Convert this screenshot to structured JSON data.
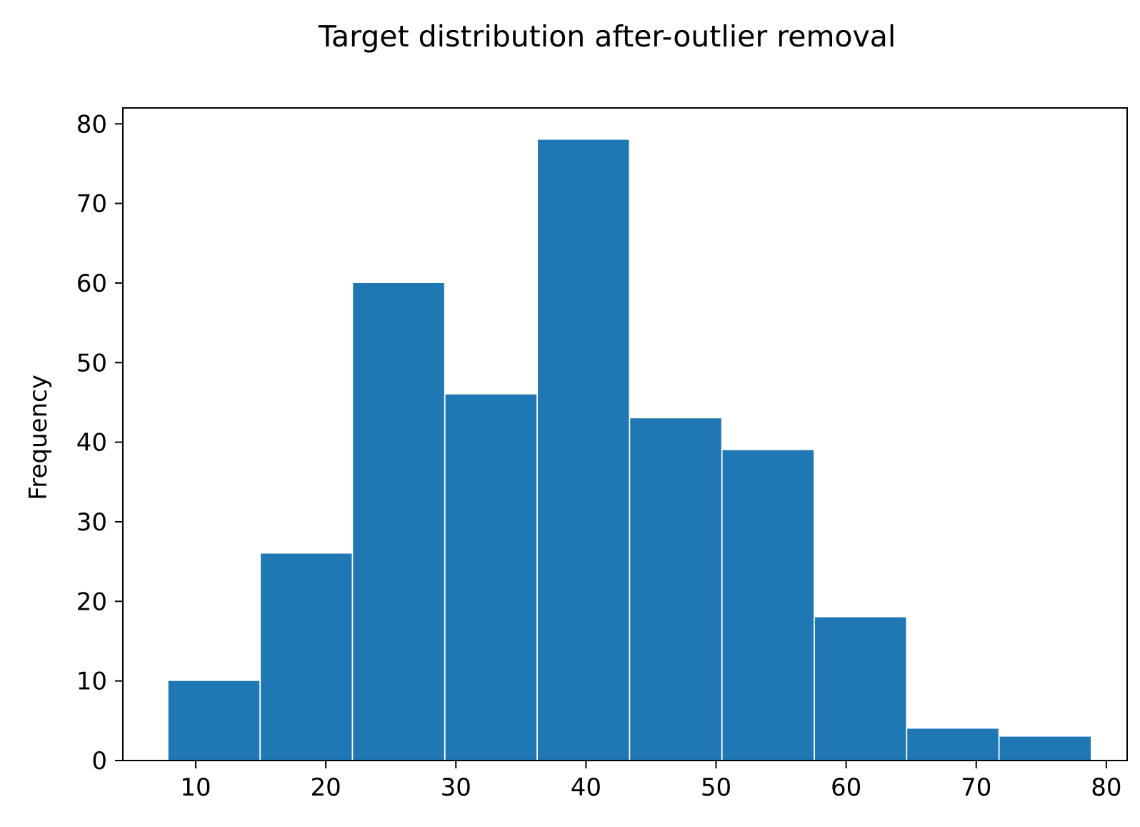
{
  "chart_data": {
    "type": "bar",
    "title": "Target distribution after-outlier removal",
    "xlabel": "",
    "ylabel": "Frequency",
    "bar_color": "#1f77b4",
    "bins": [
      {
        "start": 7.9,
        "end": 14.9,
        "value": 10
      },
      {
        "start": 15.0,
        "end": 22.0,
        "value": 26
      },
      {
        "start": 22.1,
        "end": 29.1,
        "value": 60
      },
      {
        "start": 29.2,
        "end": 36.2,
        "value": 46
      },
      {
        "start": 36.3,
        "end": 43.3,
        "value": 78
      },
      {
        "start": 43.4,
        "end": 50.4,
        "value": 43
      },
      {
        "start": 50.5,
        "end": 57.5,
        "value": 39
      },
      {
        "start": 57.6,
        "end": 64.6,
        "value": 18
      },
      {
        "start": 64.7,
        "end": 71.7,
        "value": 4
      },
      {
        "start": 71.8,
        "end": 78.8,
        "value": 3
      }
    ],
    "xlim": [
      4.4,
      81.6
    ],
    "ylim": [
      0,
      82
    ],
    "xticks": [
      10,
      20,
      30,
      40,
      50,
      60,
      70,
      80
    ],
    "yticks": [
      0,
      10,
      20,
      30,
      40,
      50,
      60,
      70,
      80
    ],
    "grid": false
  }
}
